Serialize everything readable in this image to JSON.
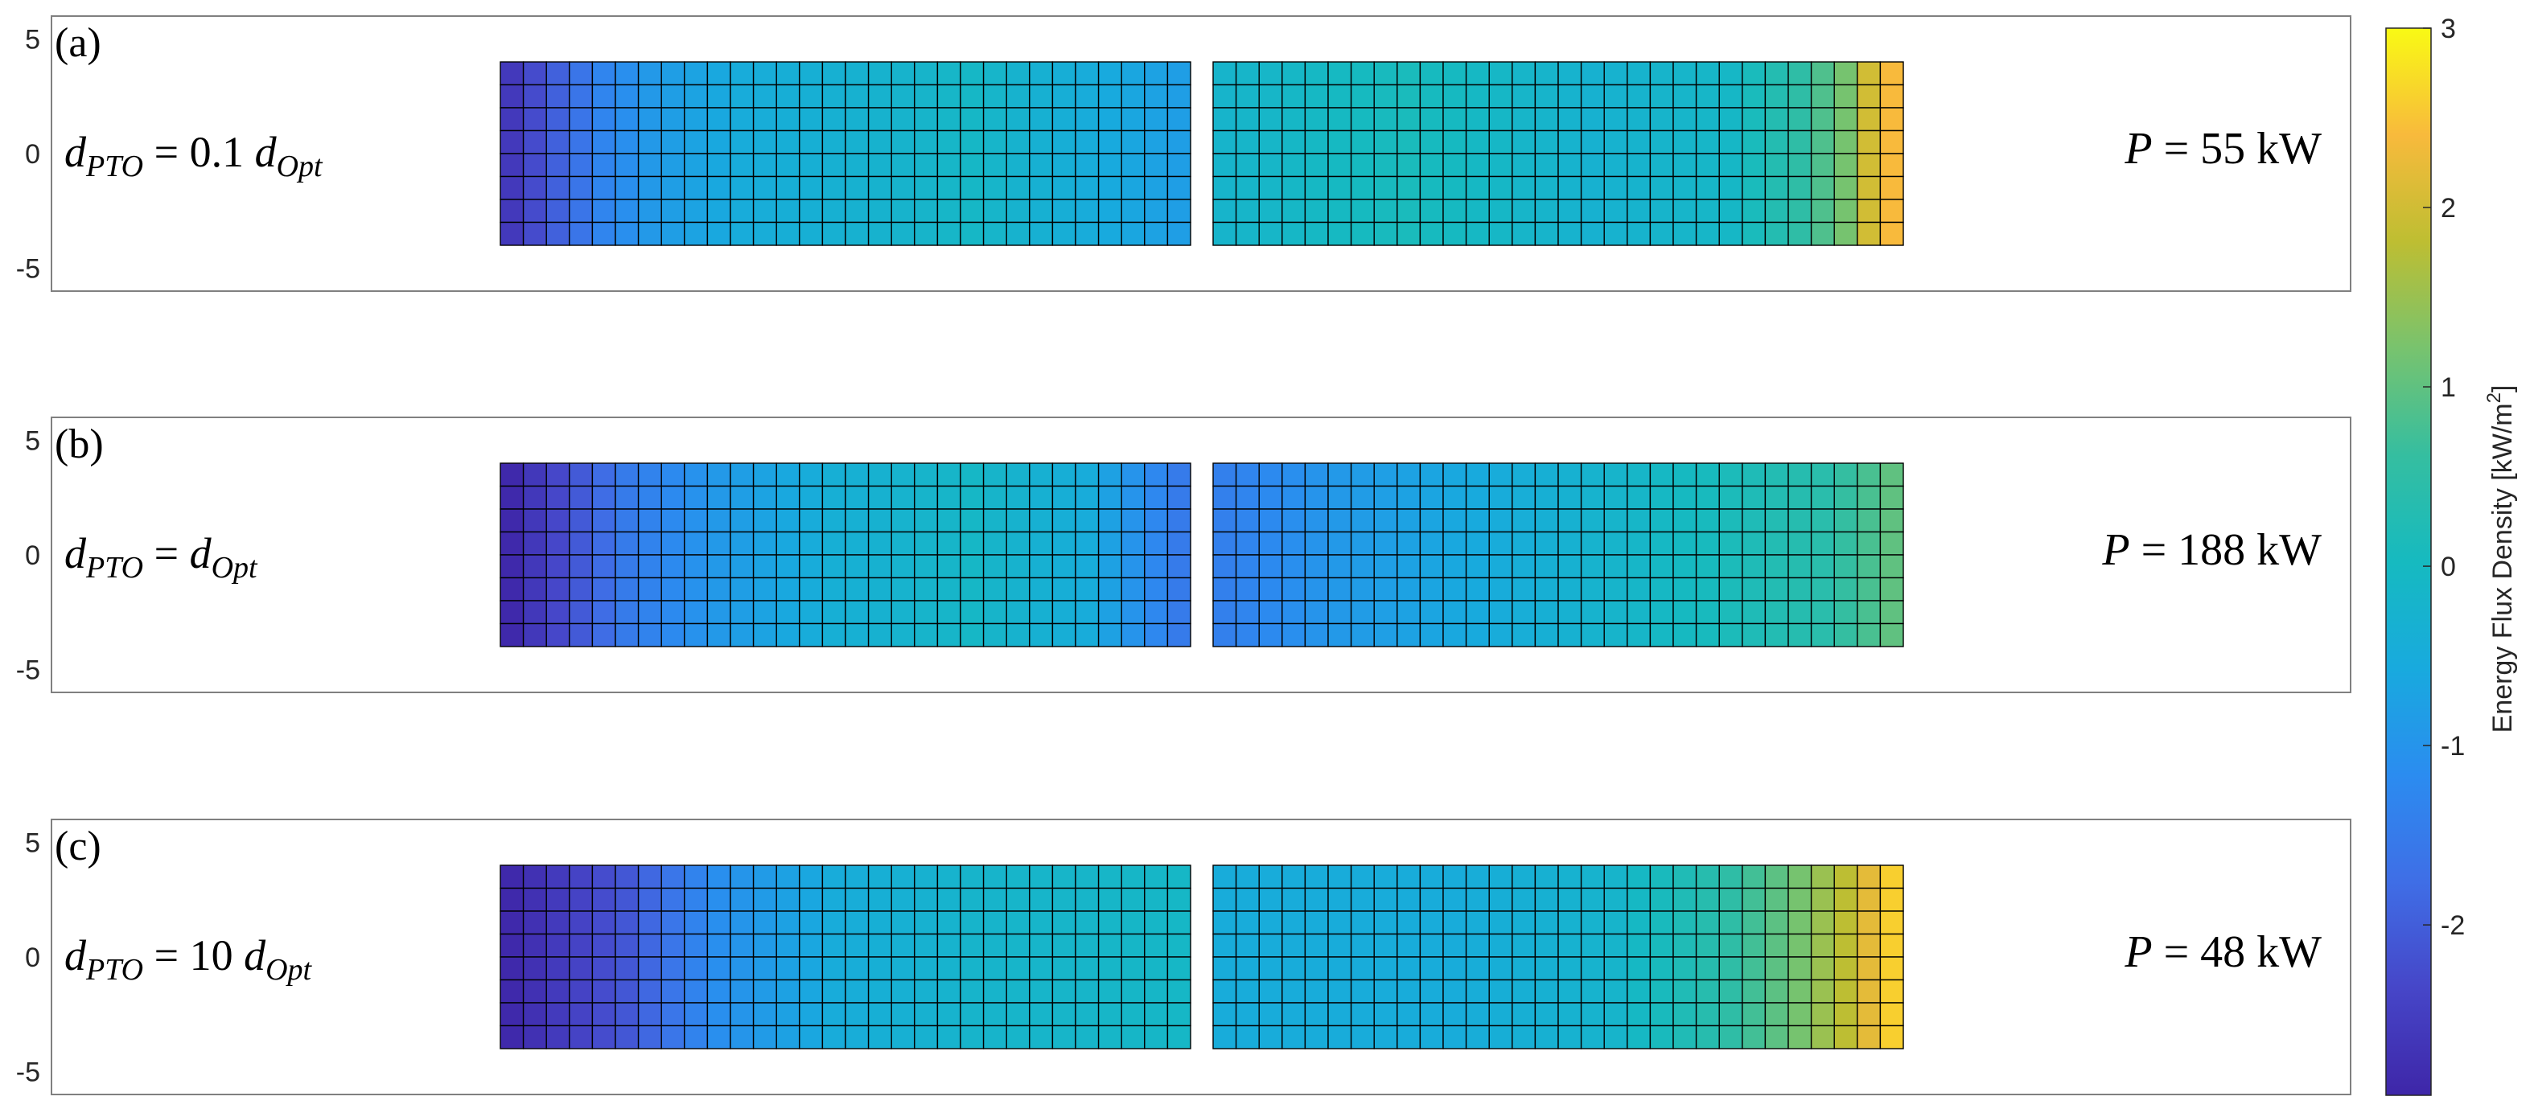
{
  "chart_data": {
    "type": "heatmap",
    "colormap": "parula",
    "panels": [
      {
        "label": "(a)",
        "annotation_left": {
          "lhs": "d",
          "lhs_sub": "PTO",
          "rhs_prefix": "0.1",
          "rhs": "d",
          "rhs_sub": "Opt"
        },
        "annotation_right": {
          "var": "P",
          "value": "55",
          "unit": "kW"
        },
        "grid": {
          "rows": 8,
          "cols_per_block": 30,
          "blocks": 2
        },
        "block_profiles": [
          [
            [
              0,
              -2.6
            ],
            [
              4,
              -1.3
            ],
            [
              6,
              -0.9
            ],
            [
              10,
              -0.5
            ],
            [
              20,
              -0.1
            ],
            [
              29,
              -0.8
            ]
          ],
          [
            [
              0,
              -0.2
            ],
            [
              8,
              0.1
            ],
            [
              16,
              -0.3
            ],
            [
              22,
              -0.1
            ],
            [
              25,
              0.5
            ],
            [
              27,
              1.2
            ],
            [
              28,
              2.0
            ],
            [
              29,
              2.4
            ]
          ]
        ]
      },
      {
        "label": "(b)",
        "annotation_left": {
          "lhs": "d",
          "lhs_sub": "PTO",
          "rhs_prefix": "",
          "rhs": "d",
          "rhs_sub": "Opt"
        },
        "annotation_right": {
          "var": "P",
          "value": "188",
          "unit": "kW"
        },
        "grid": {
          "rows": 8,
          "cols_per_block": 30,
          "blocks": 2
        },
        "block_profiles": [
          [
            [
              0,
              -2.9
            ],
            [
              5,
              -1.5
            ],
            [
              9,
              -0.9
            ],
            [
              14,
              -0.4
            ],
            [
              20,
              -0.1
            ],
            [
              25,
              -0.5
            ],
            [
              29,
              -1.5
            ]
          ],
          [
            [
              0,
              -1.4
            ],
            [
              5,
              -0.9
            ],
            [
              12,
              -0.5
            ],
            [
              20,
              0.0
            ],
            [
              26,
              0.4
            ],
            [
              29,
              1.0
            ]
          ]
        ]
      },
      {
        "label": "(c)",
        "annotation_left": {
          "lhs": "d",
          "lhs_sub": "PTO",
          "rhs_prefix": "10",
          "rhs": "d",
          "rhs_sub": "Opt"
        },
        "annotation_right": {
          "var": "P",
          "value": "48",
          "unit": "kW"
        },
        "grid": {
          "rows": 8,
          "cols_per_block": 30,
          "blocks": 2
        },
        "block_profiles": [
          [
            [
              0,
              -2.9
            ],
            [
              5,
              -2.1
            ],
            [
              9,
              -1.1
            ],
            [
              14,
              -0.5
            ],
            [
              20,
              -0.2
            ],
            [
              29,
              -0.1
            ]
          ],
          [
            [
              0,
              -0.5
            ],
            [
              10,
              -0.5
            ],
            [
              17,
              -0.2
            ],
            [
              22,
              0.5
            ],
            [
              25,
              1.2
            ],
            [
              27,
              1.8
            ],
            [
              29,
              2.6
            ]
          ]
        ]
      }
    ],
    "yticks": [
      "5",
      "0",
      "-5"
    ],
    "ylim": [
      -6,
      6
    ],
    "colorbar": {
      "label": "Energy Flux Density [kW/m",
      "label_sup": "2",
      "label_end": "]",
      "ticks": [
        "3",
        "2",
        "1",
        "0",
        "-1",
        "-2"
      ],
      "range": [
        -2.95,
        3.0
      ]
    }
  }
}
